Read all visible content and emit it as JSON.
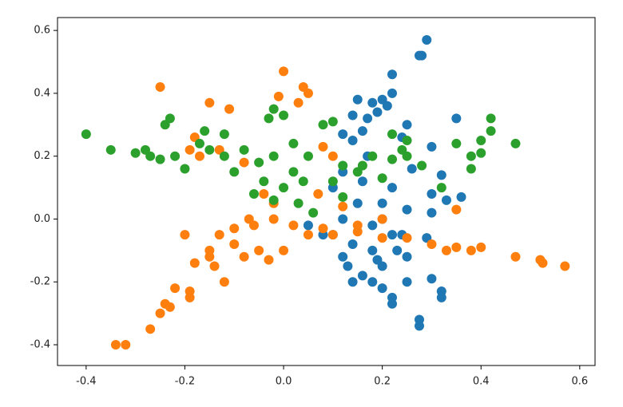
{
  "chart_data": {
    "type": "scatter",
    "xlim": [
      -0.458,
      0.631
    ],
    "ylim": [
      -0.466,
      0.641
    ],
    "xticks": [
      -0.4,
      -0.2,
      {
        "value": 0,
        "label": "0.0"
      },
      0.2,
      0.4,
      0.6
    ],
    "yticks": [
      -0.4,
      -0.2,
      {
        "value": 0,
        "label": "0.0"
      },
      0.2,
      0.4,
      0.6
    ],
    "series": [
      {
        "color": "#1f77b4",
        "x": [
          0.29,
          0.28,
          0.275,
          0.22,
          0.22,
          0.2,
          0.21,
          0.18,
          0.15,
          0.19,
          0.17,
          0.14,
          0.12,
          0.14,
          0.16,
          0.25,
          0.24,
          0.35,
          0.3,
          0.32,
          0.33,
          0.3,
          0.36,
          0.3,
          0.25,
          0.2,
          0.15,
          0.12,
          0.18,
          0.22,
          0.1,
          0.14,
          0.18,
          0.2,
          0.25,
          0.16,
          0.12,
          0.14,
          0.18,
          0.2,
          0.22,
          0.22,
          0.25,
          0.3,
          0.32,
          0.32,
          0.275,
          0.275,
          0.29,
          0.23,
          0.08,
          0.05,
          0.1,
          0.16,
          0.22,
          0.26,
          0.12,
          0.17,
          0.2,
          0.24,
          0.13,
          0.19
        ],
        "values": [
          0.57,
          0.52,
          0.52,
          0.46,
          0.4,
          0.38,
          0.36,
          0.37,
          0.38,
          0.34,
          0.32,
          0.33,
          0.27,
          0.25,
          0.28,
          0.3,
          0.26,
          0.32,
          0.23,
          0.14,
          0.06,
          0.08,
          0.07,
          0.02,
          0.03,
          0.05,
          0.05,
          0.0,
          -0.02,
          -0.05,
          -0.05,
          -0.08,
          -0.1,
          -0.15,
          -0.12,
          -0.18,
          -0.12,
          -0.2,
          -0.2,
          -0.22,
          -0.25,
          -0.27,
          -0.2,
          -0.19,
          -0.23,
          -0.25,
          -0.32,
          -0.34,
          -0.06,
          -0.1,
          -0.05,
          -0.02,
          0.1,
          0.12,
          0.1,
          0.16,
          0.15,
          0.2,
          0.0,
          -0.05,
          -0.15,
          -0.13
        ]
      },
      {
        "color": "#ff7f0e",
        "x": [
          -0.34,
          -0.32,
          -0.27,
          -0.25,
          -0.24,
          -0.23,
          -0.22,
          -0.19,
          -0.19,
          -0.18,
          -0.12,
          -0.14,
          -0.15,
          -0.13,
          -0.1,
          -0.08,
          -0.05,
          -0.03,
          0.0,
          -0.1,
          -0.06,
          -0.02,
          0.02,
          0.05,
          0.08,
          0.1,
          0.15,
          0.2,
          0.25,
          0.3,
          0.33,
          0.35,
          0.38,
          0.4,
          0.47,
          0.52,
          0.525,
          0.57,
          -0.25,
          0.0,
          0.04,
          0.05,
          0.03,
          -0.01,
          -0.15,
          -0.11,
          -0.13,
          -0.19,
          -0.17,
          -0.18,
          -0.08,
          0.08,
          0.1,
          0.07,
          -0.02,
          -0.07,
          0.2,
          0.35,
          -0.2,
          -0.15,
          0.15,
          -0.04,
          0.12
        ],
        "values": [
          -0.4,
          -0.4,
          -0.35,
          -0.3,
          -0.27,
          -0.28,
          -0.22,
          -0.23,
          -0.25,
          -0.14,
          -0.2,
          -0.15,
          -0.1,
          -0.05,
          -0.08,
          -0.12,
          -0.1,
          -0.13,
          -0.1,
          -0.03,
          -0.02,
          0.0,
          -0.02,
          -0.05,
          -0.03,
          -0.05,
          -0.04,
          -0.06,
          -0.06,
          -0.08,
          -0.1,
          -0.09,
          -0.1,
          -0.09,
          -0.12,
          -0.13,
          -0.14,
          -0.15,
          0.42,
          0.47,
          0.42,
          0.4,
          0.37,
          0.39,
          0.37,
          0.35,
          0.22,
          0.22,
          0.2,
          0.26,
          0.18,
          0.23,
          0.2,
          0.08,
          0.05,
          0.0,
          0.0,
          0.03,
          -0.05,
          -0.12,
          -0.02,
          0.08,
          0.04
        ]
      },
      {
        "color": "#2ca02c",
        "x": [
          -0.4,
          -0.35,
          -0.3,
          -0.28,
          -0.27,
          -0.25,
          -0.24,
          -0.23,
          -0.22,
          -0.2,
          -0.17,
          -0.16,
          -0.15,
          -0.12,
          -0.1,
          -0.08,
          -0.05,
          -0.03,
          -0.02,
          0.0,
          -0.04,
          0.0,
          0.02,
          0.05,
          0.08,
          0.1,
          0.06,
          0.03,
          -0.02,
          -0.06,
          0.1,
          0.12,
          0.15,
          0.18,
          0.2,
          0.22,
          0.24,
          0.22,
          0.25,
          0.28,
          0.32,
          0.35,
          0.38,
          0.4,
          0.38,
          0.42,
          0.42,
          0.47,
          0.4,
          0.12,
          -0.02,
          0.04,
          0.02,
          -0.12,
          0.25,
          0.16
        ],
        "values": [
          0.27,
          0.22,
          0.21,
          0.22,
          0.2,
          0.19,
          0.3,
          0.32,
          0.2,
          0.16,
          0.24,
          0.28,
          0.22,
          0.2,
          0.15,
          0.22,
          0.18,
          0.32,
          0.35,
          0.33,
          0.12,
          0.1,
          0.15,
          0.2,
          0.3,
          0.31,
          0.02,
          0.05,
          0.06,
          0.08,
          0.12,
          0.17,
          0.15,
          0.2,
          0.13,
          0.19,
          0.22,
          0.27,
          0.25,
          0.17,
          0.1,
          0.24,
          0.2,
          0.21,
          0.16,
          0.32,
          0.28,
          0.24,
          0.25,
          0.07,
          0.2,
          0.12,
          0.24,
          0.27,
          0.2,
          0.17
        ]
      }
    ]
  }
}
